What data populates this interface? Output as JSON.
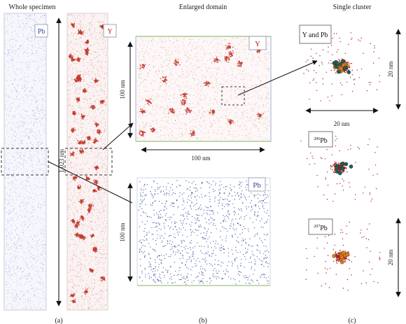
{
  "headers": {
    "whole": "Whole specimen",
    "enlarged": "Enlarged domain",
    "single": "Single cluster"
  },
  "panels": {
    "a": "(a)",
    "b": "(b)",
    "c": "(c)"
  },
  "elements": {
    "pb": "Pb",
    "y": "Y",
    "y_and_pb": "Y and Pb",
    "pb206_mass": "206",
    "pb207_mass": "207",
    "pb_sym": "Pb"
  },
  "scale": {
    "specimen_length": "1,023 nm",
    "enlarged_y_vertical": "100 nm",
    "enlarged_y_horizontal": "100 nm",
    "enlarged_pb_vertical": "100 nm",
    "cluster_top_vertical": "20 nm",
    "cluster_top_horizontal": "20 nm",
    "cluster_bottom_vertical": "20 nm"
  },
  "colors": {
    "pb_atoms": "#2a3f9a",
    "y_atoms": "#a81f1f",
    "y_cluster_core": "#c0392b",
    "pb_label_text": "#2b4aa0",
    "y_label_text": "#b02020",
    "orange_atoms": "#d97a1e",
    "teal_atoms": "#1f5e57",
    "box_border_green": "#9cc27a"
  }
}
